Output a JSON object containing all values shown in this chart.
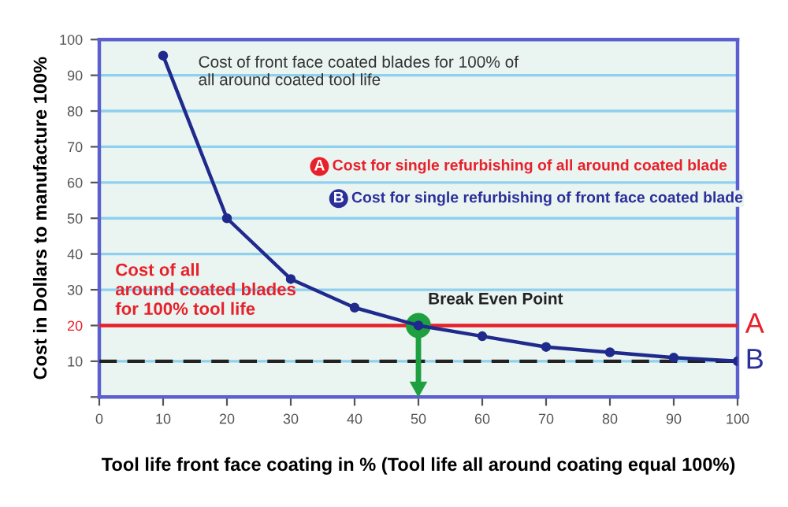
{
  "chart_data": {
    "type": "line",
    "xlabel": "Tool life front face coating in % (Tool life all around coating equal 100%)",
    "ylabel": "Cost in Dollars to manufacture 100%",
    "x": [
      10,
      20,
      30,
      40,
      50,
      60,
      70,
      80,
      90,
      100
    ],
    "series": [
      {
        "color": "#1f2a8c",
        "values": [
          95.5,
          50,
          33,
          25,
          20,
          17,
          14,
          12.5,
          11,
          10
        ],
        "marker": "circle"
      },
      {
        "type": "scatter",
        "color": "#1fa040",
        "x": [
          50
        ],
        "values": [
          20
        ],
        "marker": "circle"
      }
    ],
    "xlim": [
      0,
      100
    ],
    "ylim": [
      0,
      100
    ],
    "xticks": [
      0,
      10,
      20,
      30,
      40,
      50,
      60,
      70,
      80,
      90,
      100
    ],
    "yticks": [
      {
        "value": 0,
        "label": null
      },
      10,
      20,
      30,
      40,
      50,
      60,
      70,
      80,
      90,
      100
    ],
    "grid": "y",
    "ref_lines": [
      {
        "axis": "y",
        "value": 20,
        "label": "A",
        "color": "#e8202a",
        "line_style": "solid"
      },
      {
        "axis": "y",
        "value": 10,
        "label": "B",
        "color": "#222222",
        "line_style": "dashed"
      }
    ],
    "annotations": [
      {
        "text": "Cost of front face coated blades for 100% of\nall around coated tool life",
        "x": 10,
        "y": 95.5
      },
      "Cost for single refurbishing of all around coated blade",
      "Cost for single refurbishing of front face coated blade",
      {
        "text": "Cost of all\naround coated blades\nfor 100% tool life",
        "y": 20
      },
      {
        "text": "Break Even Point",
        "x": 50,
        "y": 20
      }
    ]
  }
}
